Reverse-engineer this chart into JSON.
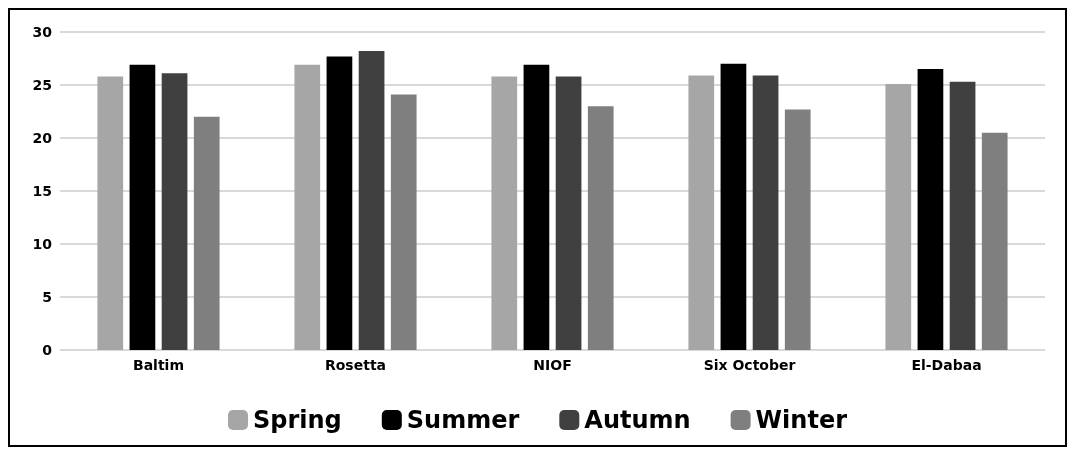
{
  "chart_data": {
    "type": "bar",
    "categories": [
      "Baltim",
      "Rosetta",
      "NIOF",
      "Six October",
      "El-Dabaa"
    ],
    "series": [
      {
        "name": "Spring",
        "color": "#a6a6a6",
        "values": [
          25.8,
          26.9,
          25.8,
          25.9,
          25.1
        ]
      },
      {
        "name": "Summer",
        "color": "#000000",
        "values": [
          26.9,
          27.7,
          26.9,
          27.0,
          26.5
        ]
      },
      {
        "name": "Autumn",
        "color": "#404040",
        "values": [
          26.1,
          28.2,
          25.8,
          25.9,
          25.3
        ]
      },
      {
        "name": "Winter",
        "color": "#7f7f7f",
        "values": [
          22.0,
          24.1,
          23.0,
          22.7,
          20.5
        ]
      }
    ],
    "ylim": [
      0,
      30
    ],
    "yticks": [
      0,
      5,
      10,
      15,
      20,
      25,
      30
    ],
    "grid": "y",
    "legend": "bottom"
  }
}
